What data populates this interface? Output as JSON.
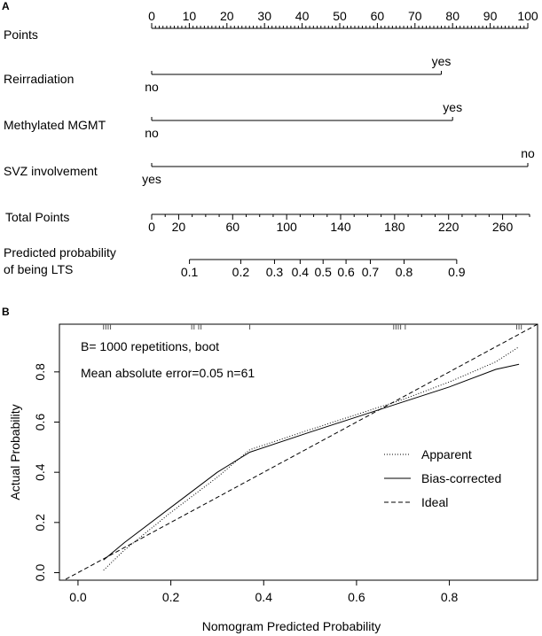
{
  "panel_a_label": "A",
  "panel_b_label": "B",
  "chart_data": [
    {
      "type": "nomogram",
      "rows": [
        {
          "label": "Points",
          "kind": "scale",
          "ticks": [
            0,
            10,
            20,
            30,
            40,
            50,
            60,
            70,
            80,
            90,
            100
          ],
          "tick_labels": [
            "0",
            "10",
            "20",
            "30",
            "40",
            "50",
            "60",
            "70",
            "80",
            "90",
            "100"
          ]
        },
        {
          "label": "Reirradiation",
          "kind": "predictor",
          "levels": [
            {
              "name": "no",
              "points": 0
            },
            {
              "name": "yes",
              "points": 77
            }
          ]
        },
        {
          "label": "Methylated MGMT",
          "kind": "predictor",
          "levels": [
            {
              "name": "no",
              "points": 0
            },
            {
              "name": "yes",
              "points": 80
            }
          ]
        },
        {
          "label": "SVZ involvement",
          "kind": "predictor",
          "levels": [
            {
              "name": "yes",
              "points": 0
            },
            {
              "name": "no",
              "points": 100
            }
          ]
        },
        {
          "label": "Total Points",
          "kind": "scale",
          "range": [
            0,
            280
          ],
          "ticks": [
            0,
            20,
            60,
            100,
            140,
            180,
            220,
            260
          ],
          "tick_labels": [
            "0",
            "20",
            "60",
            "100",
            "140",
            "180",
            "220",
            "260"
          ]
        },
        {
          "label_line1": "Predicted probability",
          "label_line2": "of being LTS",
          "kind": "probability",
          "ticks": [
            {
              "label": "0.1",
              "total_points": 28
            },
            {
              "label": "0.2",
              "total_points": 66
            },
            {
              "label": "0.3",
              "total_points": 91
            },
            {
              "label": "0.4",
              "total_points": 110
            },
            {
              "label": "0.5",
              "total_points": 127
            },
            {
              "label": "0.6",
              "total_points": 144
            },
            {
              "label": "0.7",
              "total_points": 162
            },
            {
              "label": "0.8",
              "total_points": 187
            },
            {
              "label": "0.9",
              "total_points": 226
            }
          ]
        }
      ]
    },
    {
      "type": "line",
      "xlabel": "Nomogram Predicted Probability",
      "ylabel": "Actual Probability",
      "xlim": [
        -0.04,
        0.99
      ],
      "ylim": [
        -0.03,
        0.99
      ],
      "xticks": [
        0.0,
        0.2,
        0.4,
        0.6,
        0.8
      ],
      "xtick_labels": [
        "0.0",
        "0.2",
        "0.4",
        "0.6",
        "0.8"
      ],
      "yticks": [
        0.0,
        0.2,
        0.4,
        0.6,
        0.8
      ],
      "ytick_labels": [
        "0.0",
        "0.2",
        "0.4",
        "0.6",
        "0.8"
      ],
      "annotations": [
        "B= 1000 repetitions, boot",
        "Mean absolute error=0.05 n=61"
      ],
      "legend_position": "right",
      "series": [
        {
          "name": "Apparent",
          "style": "dotted",
          "x": [
            0.055,
            0.1,
            0.2,
            0.3,
            0.37,
            0.5,
            0.6,
            0.7,
            0.8,
            0.9,
            0.95
          ],
          "y": [
            0.01,
            0.09,
            0.24,
            0.38,
            0.49,
            0.57,
            0.63,
            0.69,
            0.76,
            0.84,
            0.9
          ]
        },
        {
          "name": "Bias-corrected",
          "style": "solid",
          "x": [
            0.055,
            0.1,
            0.2,
            0.3,
            0.37,
            0.5,
            0.6,
            0.7,
            0.8,
            0.9,
            0.95
          ],
          "y": [
            0.05,
            0.12,
            0.26,
            0.4,
            0.48,
            0.56,
            0.62,
            0.68,
            0.74,
            0.81,
            0.83
          ]
        },
        {
          "name": "Ideal",
          "style": "dashed",
          "x": [
            -0.04,
            0.99
          ],
          "y": [
            -0.04,
            0.99
          ]
        }
      ],
      "rug_x": [
        0.055,
        0.06,
        0.065,
        0.07,
        0.245,
        0.25,
        0.26,
        0.265,
        0.37,
        0.68,
        0.685,
        0.69,
        0.695,
        0.705,
        0.945,
        0.95,
        0.955
      ]
    }
  ]
}
